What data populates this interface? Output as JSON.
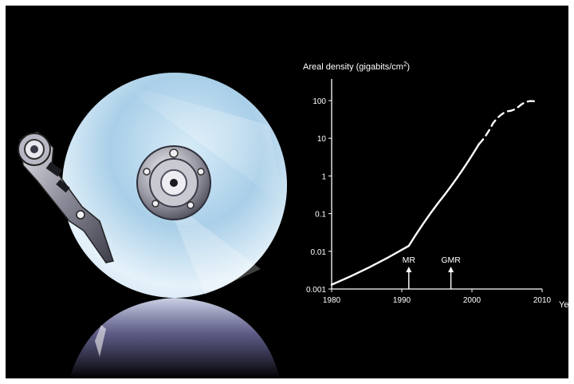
{
  "colors": {
    "background": "#000000",
    "curve": "#ffffff",
    "axis": "#ffffff",
    "text": "#ffffff"
  },
  "illustration": {
    "subject": "hard-disk-platter-with-actuator-arm",
    "icons": [
      "disk-platter-icon",
      "actuator-arm-icon",
      "spindle-hub-icon",
      "disk-reflection-icon"
    ]
  },
  "chart_data": {
    "type": "line",
    "ylabel_prefix": "Areal density (gigabits/cm",
    "ylabel_sup": "2",
    "ylabel_suffix": ")",
    "xlabel": "Year",
    "xlabel_visible": "Yea",
    "y_scale": "log",
    "ylim": [
      0.001,
      100
    ],
    "xlim": [
      1980,
      2010
    ],
    "x_ticks": [
      1980,
      1990,
      2000,
      2010
    ],
    "x_tick_labels": [
      "1980",
      "1990",
      "2000",
      "2010"
    ],
    "y_ticks": [
      0.001,
      0.01,
      0.1,
      1,
      10,
      100
    ],
    "y_tick_labels": [
      "0.001",
      "0.01",
      "0.1",
      "1",
      "10",
      "100"
    ],
    "grid": false,
    "series": [
      {
        "style": "solid",
        "x": [
          1980,
          1991,
          1996,
          2001
        ],
        "y": [
          0.0013,
          0.014,
          0.3,
          7
        ]
      },
      {
        "style": "dashed",
        "x": [
          2001,
          2003,
          2005,
          2007,
          2009
        ],
        "y": [
          7,
          25,
          52,
          78,
          95
        ]
      }
    ],
    "annotations": [
      {
        "label": "MR",
        "x": 1991
      },
      {
        "label": "GMR",
        "x": 1997
      }
    ]
  }
}
